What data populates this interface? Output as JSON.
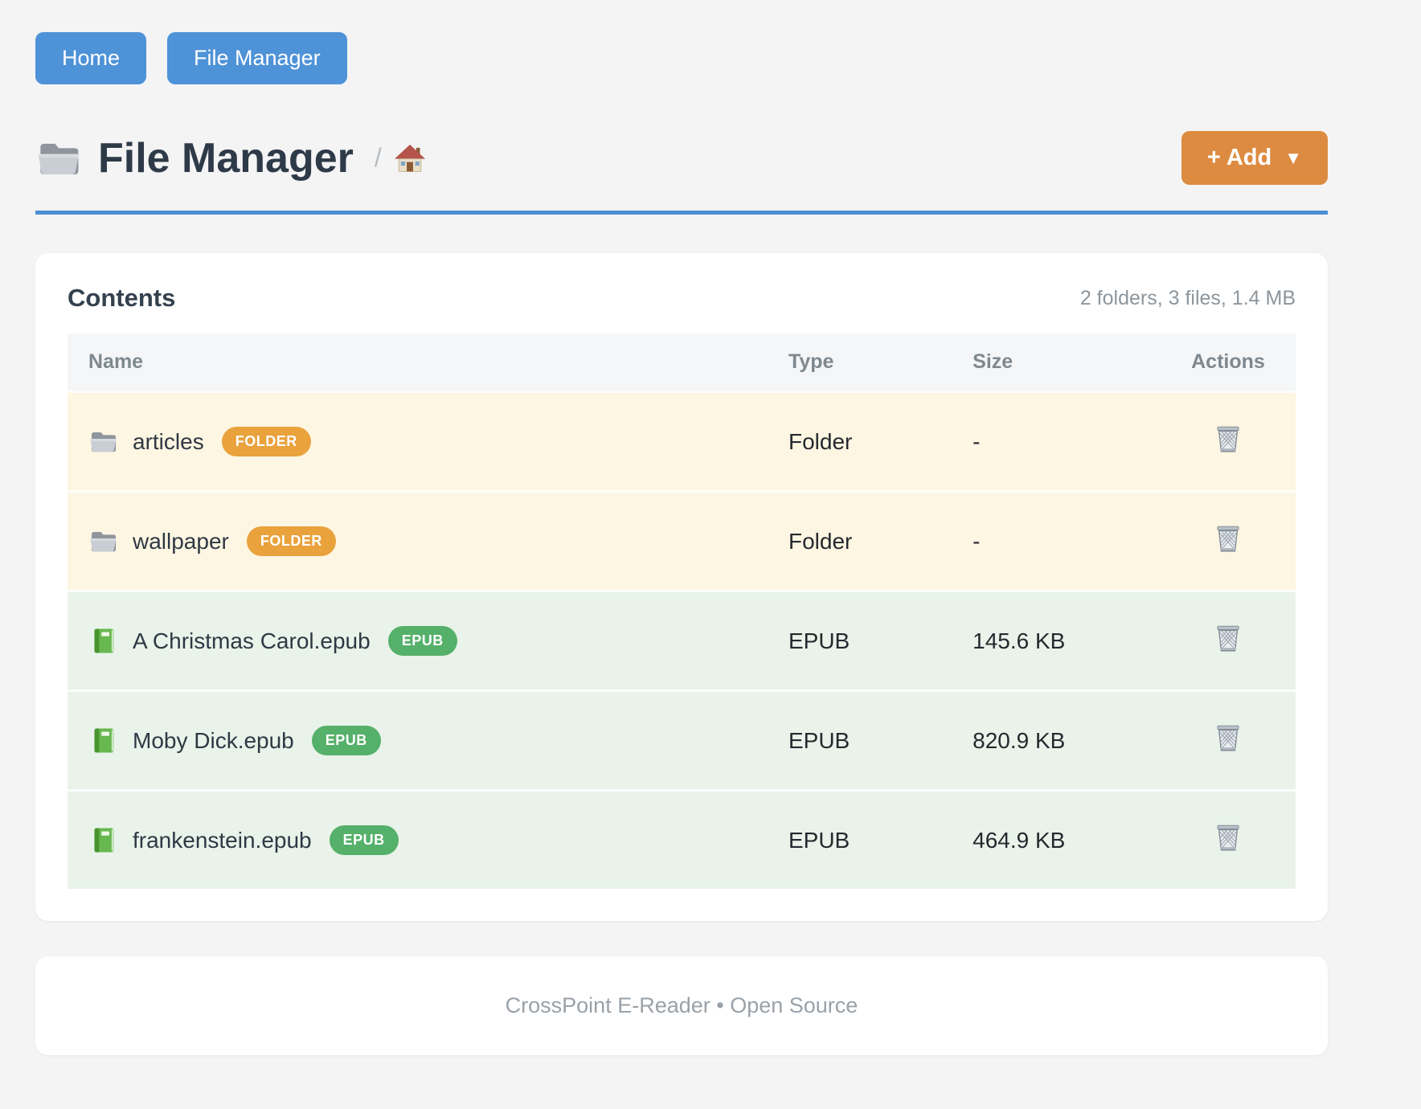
{
  "nav": {
    "buttons": [
      {
        "label": "Home"
      },
      {
        "label": "File Manager"
      }
    ]
  },
  "header": {
    "title": "File Manager",
    "title_icon": "open-folder-icon",
    "breadcrumb_separator": "/",
    "breadcrumb_home_icon": "house-icon",
    "add_button_label": "+ Add",
    "add_button_caret": "▼"
  },
  "panel": {
    "title": "Contents",
    "summary": "2 folders, 3 files, 1.4 MB",
    "table": {
      "columns": [
        "Name",
        "Type",
        "Size",
        "Actions"
      ],
      "rows": [
        {
          "name": "articles",
          "badge": "FOLDER",
          "kind": "folder",
          "type": "Folder",
          "size": "-",
          "action_icon": "wastebasket-icon"
        },
        {
          "name": "wallpaper",
          "badge": "FOLDER",
          "kind": "folder",
          "type": "Folder",
          "size": "-",
          "action_icon": "wastebasket-icon"
        },
        {
          "name": "A Christmas Carol.epub",
          "badge": "EPUB",
          "kind": "epub",
          "type": "EPUB",
          "size": "145.6 KB",
          "action_icon": "wastebasket-icon"
        },
        {
          "name": "Moby Dick.epub",
          "badge": "EPUB",
          "kind": "epub",
          "type": "EPUB",
          "size": "820.9 KB",
          "action_icon": "wastebasket-icon"
        },
        {
          "name": "frankenstein.epub",
          "badge": "EPUB",
          "kind": "epub",
          "type": "EPUB",
          "size": "464.9 KB",
          "action_icon": "wastebasket-icon"
        }
      ]
    }
  },
  "footer": {
    "text": "CrossPoint E-Reader • Open Source"
  },
  "colors": {
    "accent_blue": "#4e92d8",
    "divider_blue": "#4a8fd3",
    "add_orange": "#dd8b40",
    "badge_orange": "#e9a23c",
    "badge_green": "#55b06a",
    "folder_row_bg": "#fdf6e2",
    "epub_row_bg": "#e9f3ea"
  }
}
